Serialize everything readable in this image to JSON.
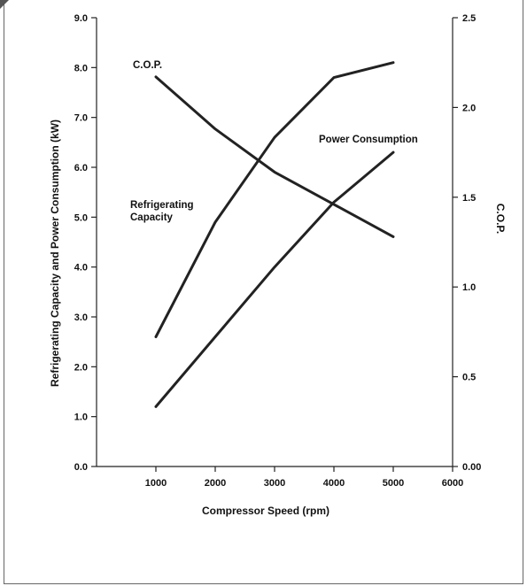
{
  "chart_data": {
    "type": "line",
    "xlabel": "Compressor Speed (rpm)",
    "ylabel": "Refrigerating Capacity and Power Consumption (kW)",
    "y2label": "C.O.P.",
    "xlim": [
      0,
      6000
    ],
    "ylim": [
      0,
      9
    ],
    "y2lim": [
      0,
      2.5
    ],
    "grid": false,
    "x_ticks": [
      "1000",
      "2000",
      "3000",
      "4000",
      "5000",
      "6000"
    ],
    "y_ticks": [
      "0.0",
      "1.0",
      "2.0",
      "3.0",
      "4.0",
      "5.0",
      "6.0",
      "7.0",
      "8.0",
      "9.0"
    ],
    "y2_ticks": [
      "0.00",
      "0.5",
      "1.0",
      "1.5",
      "2.0",
      "2.5"
    ],
    "series": [
      {
        "name": "Refrigerating Capacity",
        "axis": "left",
        "x": [
          1000,
          2000,
          3000,
          4000,
          5000
        ],
        "y": [
          2.6,
          4.9,
          6.6,
          7.8,
          8.1
        ]
      },
      {
        "name": "Power Consumption",
        "axis": "left",
        "x": [
          1000,
          2000,
          3000,
          4000,
          5000
        ],
        "y": [
          1.2,
          2.6,
          4.0,
          5.3,
          6.3
        ]
      },
      {
        "name": "C.O.P.",
        "axis": "right",
        "x": [
          1000,
          2000,
          3000,
          4000,
          5000
        ],
        "y": [
          2.17,
          1.88,
          1.64,
          1.46,
          1.28
        ]
      }
    ],
    "annotations": [
      {
        "text": "C.O.P.",
        "series": 2
      },
      {
        "text": "Power Consumption",
        "series": 1
      },
      {
        "text": "Refrigerating",
        "series": 0
      },
      {
        "text": "Capacity",
        "series": 0
      }
    ]
  }
}
